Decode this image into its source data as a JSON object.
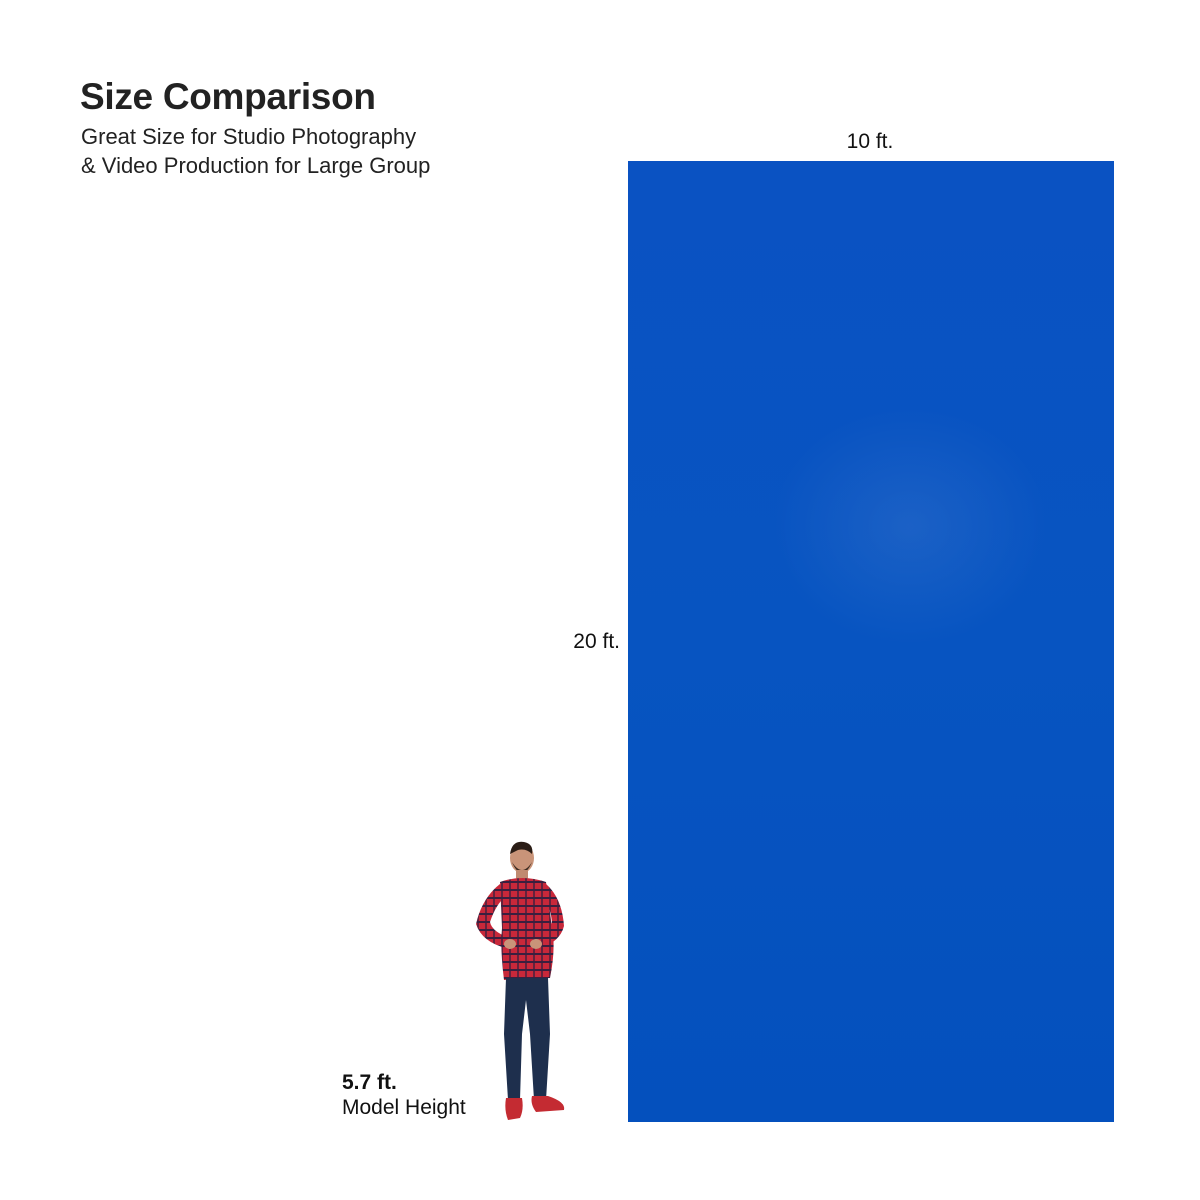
{
  "header": {
    "title": "Size Comparison",
    "subtitle_line1": "Great Size for Studio Photography",
    "subtitle_line2": "& Video Production for Large Group"
  },
  "backdrop": {
    "width_label": "10 ft.",
    "height_label": "20 ft.",
    "color": "#0a52c2"
  },
  "model": {
    "height_value": "5.7 ft.",
    "caption": "Model Height",
    "shirt_color": "#c8283a",
    "jeans_color": "#1e2f4d",
    "shoe_color": "#c42b32"
  }
}
